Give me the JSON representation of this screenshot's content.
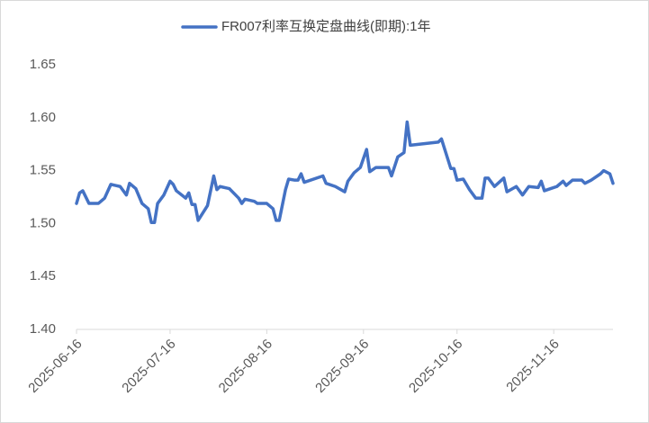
{
  "chart_data": {
    "type": "line",
    "series": [
      {
        "name": "FR007利率互换定盘曲线(即期):1年",
        "color": "#4472c4",
        "x": [
          "2025-06-16",
          "2025-06-17",
          "2025-06-18",
          "2025-06-20",
          "2025-06-23",
          "2025-06-25",
          "2025-06-27",
          "2025-06-30",
          "2025-07-02",
          "2025-07-03",
          "2025-07-05",
          "2025-07-07",
          "2025-07-09",
          "2025-07-10",
          "2025-07-11",
          "2025-07-12",
          "2025-07-14",
          "2025-07-16",
          "2025-07-17",
          "2025-07-18",
          "2025-07-21",
          "2025-07-22",
          "2025-07-23",
          "2025-07-24",
          "2025-07-25",
          "2025-07-28",
          "2025-07-30",
          "2025-07-31",
          "2025-08-01",
          "2025-08-04",
          "2025-08-07",
          "2025-08-08",
          "2025-08-09",
          "2025-08-12",
          "2025-08-13",
          "2025-08-15",
          "2025-08-16",
          "2025-08-18",
          "2025-08-19",
          "2025-08-20",
          "2025-08-22",
          "2025-08-23",
          "2025-08-25",
          "2025-08-26",
          "2025-08-27",
          "2025-08-28",
          "2025-09-03",
          "2025-09-04",
          "2025-09-07",
          "2025-09-10",
          "2025-09-11",
          "2025-09-13",
          "2025-09-15",
          "2025-09-17",
          "2025-09-18",
          "2025-09-20",
          "2025-09-24",
          "2025-09-25",
          "2025-09-27",
          "2025-09-29",
          "2025-09-30",
          "2025-10-01",
          "2025-10-10",
          "2025-10-11",
          "2025-10-14",
          "2025-10-15",
          "2025-10-16",
          "2025-10-18",
          "2025-10-20",
          "2025-10-22",
          "2025-10-24",
          "2025-10-25",
          "2025-10-26",
          "2025-10-28",
          "2025-10-31",
          "2025-11-01",
          "2025-11-04",
          "2025-11-06",
          "2025-11-08",
          "2025-11-11",
          "2025-11-12",
          "2025-11-13",
          "2025-11-15",
          "2025-11-17",
          "2025-11-19",
          "2025-11-20",
          "2025-11-22",
          "2025-11-25",
          "2025-11-26",
          "2025-11-28",
          "2025-12-01",
          "2025-12-02",
          "2025-12-04",
          "2025-12-05"
        ],
        "values": [
          1.519,
          1.529,
          1.531,
          1.519,
          1.519,
          1.524,
          1.537,
          1.535,
          1.527,
          1.538,
          1.533,
          1.519,
          1.514,
          1.501,
          1.501,
          1.519,
          1.527,
          1.54,
          1.537,
          1.531,
          1.524,
          1.529,
          1.518,
          1.518,
          1.503,
          1.517,
          1.545,
          1.532,
          1.535,
          1.533,
          1.524,
          1.519,
          1.523,
          1.521,
          1.519,
          1.519,
          1.519,
          1.514,
          1.503,
          1.503,
          1.532,
          1.542,
          1.541,
          1.541,
          1.547,
          1.539,
          1.545,
          1.538,
          1.535,
          1.53,
          1.54,
          1.548,
          1.553,
          1.57,
          1.549,
          1.553,
          1.553,
          1.545,
          1.563,
          1.567,
          1.596,
          1.574,
          1.577,
          1.58,
          1.552,
          1.552,
          1.541,
          1.542,
          1.532,
          1.524,
          1.524,
          1.543,
          1.543,
          1.535,
          1.543,
          1.53,
          1.535,
          1.527,
          1.535,
          1.534,
          1.54,
          1.531,
          1.533,
          1.535,
          1.54,
          1.536,
          1.541,
          1.541,
          1.538,
          1.541,
          1.547,
          1.55,
          1.547,
          1.538
        ]
      }
    ],
    "xlim": [
      "2025-06-16",
      "2025-12-05"
    ],
    "xticks": [
      "2025-06-16",
      "2025-07-16",
      "2025-08-16",
      "2025-09-16",
      "2025-10-16",
      "2025-11-16"
    ],
    "ylim": [
      1.4,
      1.65
    ],
    "yticks": [
      {
        "value": 1.4,
        "label": "1.40"
      },
      {
        "value": 1.45,
        "label": "1.45"
      },
      {
        "value": 1.5,
        "label": "1.50"
      },
      {
        "value": 1.55,
        "label": "1.55"
      },
      {
        "value": 1.6,
        "label": "1.60"
      },
      {
        "value": 1.65,
        "label": "1.65"
      }
    ],
    "grid": false,
    "legend": "top"
  }
}
